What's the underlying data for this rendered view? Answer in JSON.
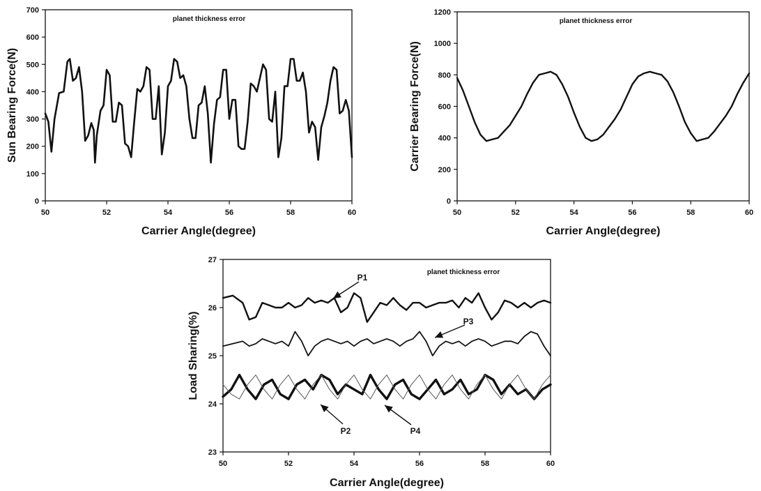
{
  "chart_data": [
    {
      "type": "line",
      "xlabel": "Carrier Angle(degree)",
      "ylabel": "Sun Bearing Force(N)",
      "xlim": [
        50,
        60
      ],
      "ylim": [
        0,
        700
      ],
      "xticks": [
        "50",
        "52",
        "54",
        "56",
        "58",
        "60"
      ],
      "yticks": [
        "0",
        "100",
        "200",
        "300",
        "400",
        "500",
        "600",
        "700"
      ],
      "annotation": "planet thickness error",
      "series": [
        {
          "x": [
            50.0,
            50.1,
            50.2,
            50.3,
            50.45,
            50.6,
            50.72,
            50.8,
            50.9,
            51.0,
            51.1,
            51.2,
            51.3,
            51.4,
            51.5,
            51.58,
            51.62,
            51.68,
            51.8,
            51.9,
            52.0,
            52.1,
            52.2,
            52.3,
            52.4,
            52.5,
            52.6,
            52.7,
            52.8,
            52.9,
            53.0,
            53.1,
            53.2,
            53.3,
            53.4,
            53.5,
            53.6,
            53.7,
            53.8,
            53.9,
            54.0,
            54.1,
            54.2,
            54.3,
            54.4,
            54.5,
            54.6,
            54.7,
            54.8,
            54.9,
            55.0,
            55.1,
            55.2,
            55.3,
            55.4,
            55.5,
            55.6,
            55.7,
            55.8,
            55.9,
            56.0,
            56.1,
            56.2,
            56.3,
            56.4,
            56.5,
            56.6,
            56.7,
            56.8,
            56.9,
            57.0,
            57.1,
            57.2,
            57.3,
            57.4,
            57.5,
            57.6,
            57.7,
            57.8,
            57.9,
            58.0,
            58.1,
            58.2,
            58.3,
            58.4,
            58.5,
            58.6,
            58.7,
            58.8,
            58.9,
            59.0,
            59.1,
            59.2,
            59.3,
            59.4,
            59.5,
            59.6,
            59.7,
            59.8,
            59.9,
            60.0
          ],
          "y": [
            320,
            290,
            180,
            300,
            395,
            400,
            510,
            520,
            440,
            450,
            490,
            400,
            220,
            240,
            285,
            260,
            140,
            240,
            330,
            350,
            480,
            460,
            290,
            290,
            360,
            350,
            210,
            200,
            160,
            290,
            410,
            400,
            420,
            490,
            480,
            300,
            300,
            420,
            170,
            250,
            420,
            440,
            520,
            510,
            450,
            460,
            420,
            300,
            230,
            230,
            350,
            360,
            420,
            320,
            140,
            280,
            370,
            380,
            480,
            480,
            300,
            370,
            370,
            200,
            190,
            190,
            290,
            430,
            420,
            400,
            450,
            500,
            480,
            300,
            290,
            400,
            160,
            230,
            420,
            420,
            520,
            520,
            440,
            440,
            470,
            400,
            250,
            290,
            270,
            150,
            270,
            310,
            360,
            440,
            490,
            480,
            320,
            330,
            370,
            330,
            160
          ]
        }
      ]
    },
    {
      "type": "line",
      "xlabel": "Carrier Angle(degree)",
      "ylabel": "Carrier Bearing Force(N)",
      "xlim": [
        50,
        60
      ],
      "ylim": [
        0,
        1200
      ],
      "xticks": [
        "50",
        "52",
        "54",
        "56",
        "58",
        "60"
      ],
      "yticks": [
        "0",
        "200",
        "400",
        "600",
        "800",
        "1000",
        "1200"
      ],
      "annotation": "planet thickness error",
      "series": [
        {
          "x": [
            50.0,
            50.2,
            50.4,
            50.6,
            50.8,
            51.0,
            51.2,
            51.4,
            51.6,
            51.8,
            52.0,
            52.2,
            52.4,
            52.6,
            52.8,
            53.0,
            53.2,
            53.4,
            53.6,
            53.8,
            54.0,
            54.2,
            54.4,
            54.6,
            54.8,
            55.0,
            55.2,
            55.4,
            55.6,
            55.8,
            56.0,
            56.2,
            56.4,
            56.6,
            56.8,
            57.0,
            57.2,
            57.4,
            57.6,
            57.8,
            58.0,
            58.2,
            58.4,
            58.6,
            58.8,
            59.0,
            59.2,
            59.4,
            59.6,
            59.8,
            60.0
          ],
          "y": [
            780,
            700,
            600,
            500,
            420,
            380,
            390,
            400,
            440,
            480,
            540,
            600,
            680,
            750,
            800,
            810,
            820,
            800,
            740,
            660,
            560,
            470,
            400,
            380,
            390,
            420,
            470,
            520,
            580,
            660,
            740,
            790,
            810,
            820,
            810,
            800,
            760,
            690,
            600,
            500,
            430,
            380,
            390,
            400,
            440,
            490,
            540,
            600,
            680,
            750,
            810
          ]
        }
      ]
    },
    {
      "type": "line",
      "xlabel": "Carrier Angle(degree)",
      "ylabel": "Load Sharing(%)",
      "xlim": [
        50,
        60
      ],
      "ylim": [
        23,
        27
      ],
      "xticks": [
        "50",
        "52",
        "54",
        "56",
        "58",
        "60"
      ],
      "yticks": [
        "23",
        "24",
        "25",
        "26",
        "27"
      ],
      "annotation": "planet thickness error",
      "series": [
        {
          "name": "P1",
          "x": [
            50.0,
            50.3,
            50.6,
            50.8,
            51.0,
            51.2,
            51.4,
            51.6,
            51.8,
            52.0,
            52.2,
            52.4,
            52.6,
            52.8,
            53.0,
            53.2,
            53.4,
            53.6,
            53.8,
            54.0,
            54.2,
            54.4,
            54.6,
            54.8,
            55.0,
            55.2,
            55.4,
            55.6,
            55.8,
            56.0,
            56.2,
            56.4,
            56.6,
            56.8,
            57.0,
            57.2,
            57.4,
            57.6,
            57.8,
            58.0,
            58.2,
            58.4,
            58.6,
            58.8,
            59.0,
            59.2,
            59.4,
            59.6,
            59.8,
            60.0
          ],
          "y": [
            26.2,
            26.25,
            26.1,
            25.75,
            25.8,
            26.1,
            26.05,
            26.0,
            26.0,
            26.1,
            26.0,
            26.05,
            26.2,
            26.1,
            26.15,
            26.1,
            26.2,
            25.9,
            26.0,
            26.3,
            26.2,
            25.7,
            25.9,
            26.1,
            26.05,
            26.2,
            26.05,
            25.95,
            26.1,
            26.1,
            26.0,
            26.05,
            26.1,
            26.1,
            26.15,
            26.0,
            26.2,
            26.1,
            26.3,
            26.0,
            25.75,
            25.9,
            26.15,
            26.1,
            26.0,
            26.1,
            26.0,
            26.1,
            26.15,
            26.1
          ]
        },
        {
          "name": "P3",
          "x": [
            50.0,
            50.3,
            50.6,
            50.8,
            51.0,
            51.2,
            51.4,
            51.6,
            51.8,
            52.0,
            52.2,
            52.4,
            52.6,
            52.8,
            53.0,
            53.2,
            53.4,
            53.6,
            53.8,
            54.0,
            54.2,
            54.4,
            54.6,
            54.8,
            55.0,
            55.2,
            55.4,
            55.6,
            55.8,
            56.0,
            56.2,
            56.4,
            56.6,
            56.8,
            57.0,
            57.2,
            57.4,
            57.6,
            57.8,
            58.0,
            58.2,
            58.4,
            58.6,
            58.8,
            59.0,
            59.2,
            59.4,
            59.6,
            59.8,
            60.0
          ],
          "y": [
            25.2,
            25.25,
            25.3,
            25.2,
            25.25,
            25.35,
            25.3,
            25.25,
            25.3,
            25.2,
            25.5,
            25.3,
            25.0,
            25.2,
            25.3,
            25.35,
            25.3,
            25.25,
            25.3,
            25.2,
            25.3,
            25.35,
            25.25,
            25.3,
            25.35,
            25.3,
            25.2,
            25.3,
            25.35,
            25.5,
            25.3,
            25.0,
            25.2,
            25.3,
            25.25,
            25.3,
            25.2,
            25.3,
            25.35,
            25.3,
            25.2,
            25.25,
            25.3,
            25.3,
            25.25,
            25.4,
            25.5,
            25.45,
            25.2,
            25.0
          ]
        },
        {
          "name": "P2",
          "x": [
            50.0,
            50.25,
            50.5,
            50.75,
            51.0,
            51.25,
            51.5,
            51.75,
            52.0,
            52.25,
            52.5,
            52.75,
            53.0,
            53.25,
            53.5,
            53.75,
            54.0,
            54.25,
            54.5,
            54.75,
            55.0,
            55.25,
            55.5,
            55.75,
            56.0,
            56.25,
            56.5,
            56.75,
            57.0,
            57.25,
            57.5,
            57.75,
            58.0,
            58.25,
            58.5,
            58.75,
            59.0,
            59.25,
            59.5,
            59.75,
            60.0
          ],
          "y": [
            24.15,
            24.3,
            24.6,
            24.3,
            24.1,
            24.4,
            24.5,
            24.2,
            24.1,
            24.4,
            24.5,
            24.3,
            24.6,
            24.5,
            24.2,
            24.4,
            24.3,
            24.2,
            24.6,
            24.3,
            24.1,
            24.4,
            24.5,
            24.2,
            24.1,
            24.3,
            24.5,
            24.2,
            24.3,
            24.5,
            24.2,
            24.3,
            24.6,
            24.5,
            24.2,
            24.4,
            24.2,
            24.3,
            24.1,
            24.3,
            24.4
          ]
        },
        {
          "name": "P4",
          "x": [
            50.0,
            50.25,
            50.5,
            50.75,
            51.0,
            51.25,
            51.5,
            51.75,
            52.0,
            52.25,
            52.5,
            52.75,
            53.0,
            53.25,
            53.5,
            53.75,
            54.0,
            54.25,
            54.5,
            54.75,
            55.0,
            55.25,
            55.5,
            55.75,
            56.0,
            56.25,
            56.5,
            56.75,
            57.0,
            57.25,
            57.5,
            57.75,
            58.0,
            58.25,
            58.5,
            58.75,
            59.0,
            59.25,
            59.5,
            59.75,
            60.0
          ],
          "y": [
            24.4,
            24.2,
            24.1,
            24.4,
            24.6,
            24.3,
            24.1,
            24.4,
            24.6,
            24.3,
            24.1,
            24.4,
            24.6,
            24.3,
            24.1,
            24.4,
            24.6,
            24.3,
            24.1,
            24.4,
            24.6,
            24.3,
            24.1,
            24.4,
            24.6,
            24.3,
            24.1,
            24.4,
            24.6,
            24.3,
            24.1,
            24.4,
            24.6,
            24.3,
            24.1,
            24.4,
            24.6,
            24.3,
            24.1,
            24.4,
            24.6
          ]
        }
      ]
    }
  ]
}
